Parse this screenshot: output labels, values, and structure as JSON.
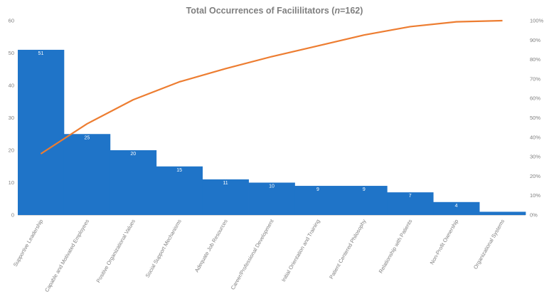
{
  "chart_data": {
    "type": "bar",
    "title": {
      "prefix": "Total Occurrences of Facililitators (",
      "n_label": "n",
      "suffix": "=162)"
    },
    "categories": [
      "Supportive Leadership",
      "Capable and Motivated Employees",
      "Positive Organizational Values",
      "Social Support Mechanisms",
      "Adequate Job Resources",
      "Career/Professional Development",
      "Initial Orientation and Training",
      "Patient Centered Philosophy",
      "Relationship with Patients",
      "Non-Profit Ownership",
      "Organizational Systems"
    ],
    "series": [
      {
        "values": [
          51,
          25,
          20,
          15,
          11,
          10,
          9,
          9,
          7,
          4,
          1
        ],
        "color": "#1f74c8",
        "labels": [
          "51",
          "25",
          "20",
          "15",
          "11",
          "10",
          "9",
          "9",
          "7",
          "4",
          ""
        ]
      },
      {
        "values": [
          31.5,
          46.9,
          59.3,
          68.5,
          75.3,
          81.5,
          87.0,
          92.6,
          96.9,
          99.4,
          100
        ],
        "color": "#ed7d31",
        "axis": "right"
      }
    ],
    "ylim": [
      0,
      60
    ],
    "yticks": [
      "0",
      "10",
      "20",
      "30",
      "40",
      "50",
      "60"
    ],
    "y2lim": [
      0,
      100
    ],
    "y2ticks": [
      "0%",
      "10%",
      "20%",
      "30%",
      "40%",
      "50%",
      "60%",
      "70%",
      "80%",
      "90%",
      "100%"
    ],
    "grid": false,
    "xlabel": "",
    "ylabel": ""
  }
}
